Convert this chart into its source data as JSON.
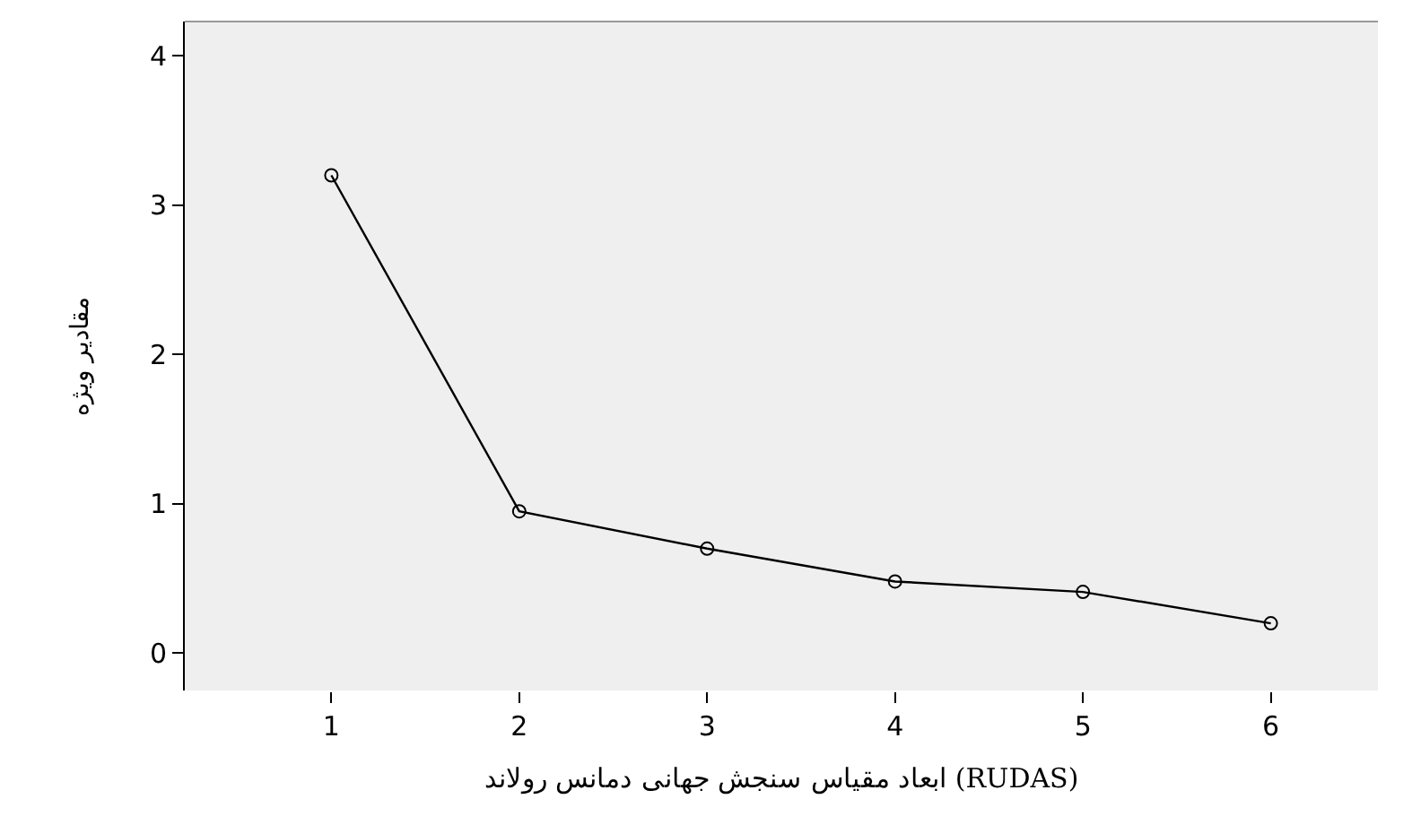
{
  "chart_data": {
    "type": "line",
    "xlabel": "ابعاد مقیاس سنجش جهانی دمانس رولاند (RUDAS)",
    "ylabel": "مقادیر ویژه",
    "x": [
      1,
      2,
      3,
      4,
      5,
      6
    ],
    "series": [
      {
        "color": "#000000",
        "values": [
          3.2,
          0.95,
          0.7,
          0.48,
          0.41,
          0.2
        ]
      }
    ],
    "xlim": [
      0.22,
      6.57
    ],
    "xticks": [
      1,
      2,
      3,
      4,
      5,
      6
    ],
    "ylim": [
      -0.25,
      4.23
    ],
    "yticks": [
      0,
      1,
      2,
      3,
      4
    ],
    "marker": "circle",
    "line_style": "solid",
    "grid": false
  }
}
